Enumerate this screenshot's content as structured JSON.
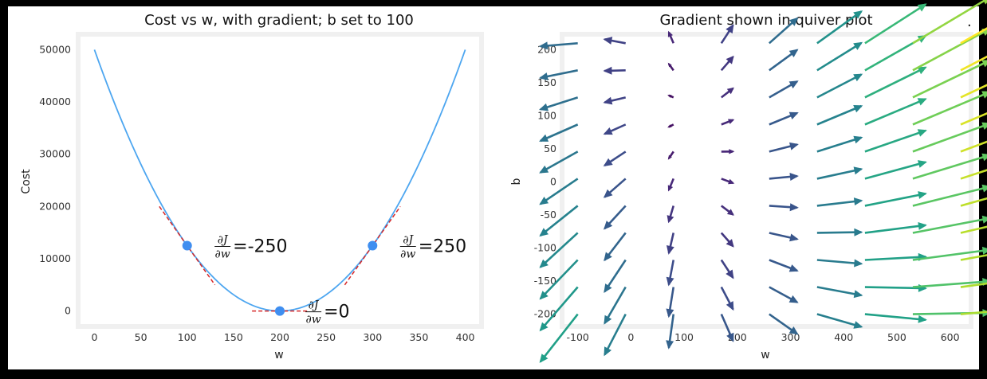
{
  "chart_data": [
    {
      "type": "line",
      "title": "Cost vs w, with gradient; b set to 100",
      "xlabel": "w",
      "ylabel": "Cost",
      "xlim": [
        -15,
        415
      ],
      "ylim": [
        -2500,
        52500
      ],
      "xticks": [
        0,
        50,
        100,
        150,
        200,
        250,
        300,
        350,
        400
      ],
      "yticks": [
        0,
        10000,
        20000,
        30000,
        40000,
        50000
      ],
      "grid": false,
      "series": [
        {
          "kind": "curve",
          "color": "#4da6f0",
          "x_range": [
            0,
            400
          ],
          "cost_min_w": 200,
          "cost_at_min": 0,
          "cost_at_ends": 50000
        }
      ],
      "points": [
        {
          "w": 100,
          "cost": 12500,
          "color": "#3f8ef0"
        },
        {
          "w": 200,
          "cost": 0,
          "color": "#3f8ef0"
        },
        {
          "w": 300,
          "cost": 12500,
          "color": "#3f8ef0"
        }
      ],
      "tangents": [
        {
          "w": 100,
          "cost": 12500,
          "slope": -250,
          "half_width": 30,
          "color": "#d62728"
        },
        {
          "w": 200,
          "cost": 0,
          "slope": 0,
          "half_width": 30,
          "color": "#d62728"
        },
        {
          "w": 300,
          "cost": 12500,
          "slope": 250,
          "half_width": 30,
          "color": "#d62728"
        }
      ],
      "annotations": [
        {
          "frac_num": "∂J",
          "frac_den": "∂w",
          "text": " =-250",
          "w": 115,
          "cost": 12500
        },
        {
          "frac_num": "∂J",
          "frac_den": "∂w",
          "text": " =250",
          "w": 315,
          "cost": 12500
        },
        {
          "frac_num": "∂J",
          "frac_den": "∂w",
          "text": " =0",
          "w": 213,
          "cost": 0
        }
      ]
    },
    {
      "type": "quiver",
      "title": "Gradient shown in quiver plot",
      "xlabel": "w",
      "ylabel": "b",
      "xlim": [
        -125,
        635
      ],
      "ylim": [
        -215,
        220
      ],
      "xticks": [
        -100,
        0,
        100,
        200,
        300,
        400,
        500,
        600
      ],
      "yticks": [
        -200,
        -150,
        -100,
        -50,
        0,
        50,
        100,
        150,
        200
      ],
      "grid": false,
      "colormap": "viridis",
      "w_grid": [
        -100,
        -10,
        80,
        170,
        260,
        350,
        440,
        530,
        620
      ],
      "b_grid": [
        -200,
        -159,
        -118,
        -77,
        -36,
        5,
        46,
        87,
        128,
        169,
        210
      ],
      "arrow_scale": 0.65,
      "gradient_model": {
        "dw": [
          0.35,
          15,
          -37
        ],
        "db": [
          0.15,
          0.21,
          -35
        ]
      }
    }
  ],
  "corner_marker": "."
}
